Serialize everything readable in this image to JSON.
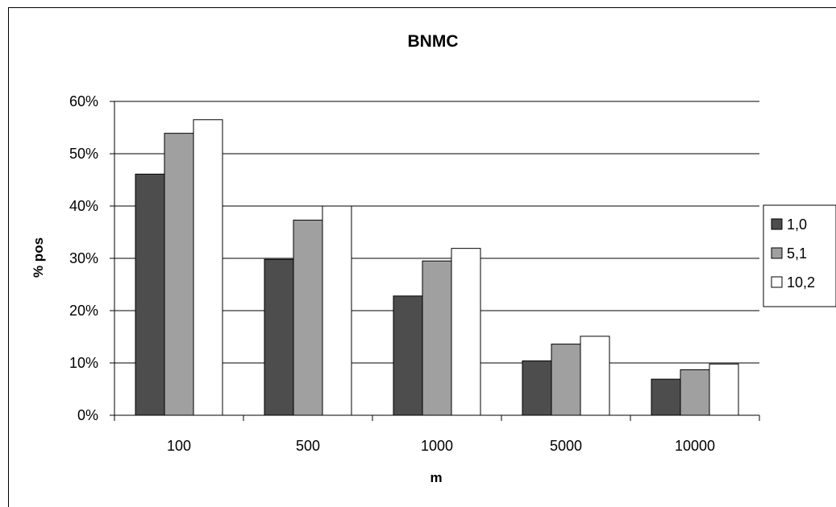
{
  "chart_data": {
    "type": "bar",
    "title": "BNMC",
    "xlabel": "m",
    "ylabel": "% pos",
    "categories": [
      "100",
      "500",
      "1000",
      "5000",
      "10000"
    ],
    "ylim": [
      0,
      0.6
    ],
    "yticks": [
      {
        "value": 0,
        "label": "0%"
      },
      {
        "value": 0.1,
        "label": "10%"
      },
      {
        "value": 0.2,
        "label": "20%"
      },
      {
        "value": 0.3,
        "label": "30%"
      },
      {
        "value": 0.4,
        "label": "40%"
      },
      {
        "value": 0.5,
        "label": "50%"
      },
      {
        "value": 0.6,
        "label": "60%"
      }
    ],
    "grid": true,
    "legend_position": "right",
    "series": [
      {
        "name": "1,0",
        "color": "#4d4d4d",
        "values": [
          0.461,
          0.298,
          0.228,
          0.104,
          0.069
        ]
      },
      {
        "name": "5,1",
        "color": "#a0a0a0",
        "values": [
          0.539,
          0.373,
          0.295,
          0.136,
          0.087
        ]
      },
      {
        "name": "10,2",
        "color": "#ffffff",
        "values": [
          0.565,
          0.4,
          0.319,
          0.151,
          0.098
        ]
      }
    ]
  }
}
